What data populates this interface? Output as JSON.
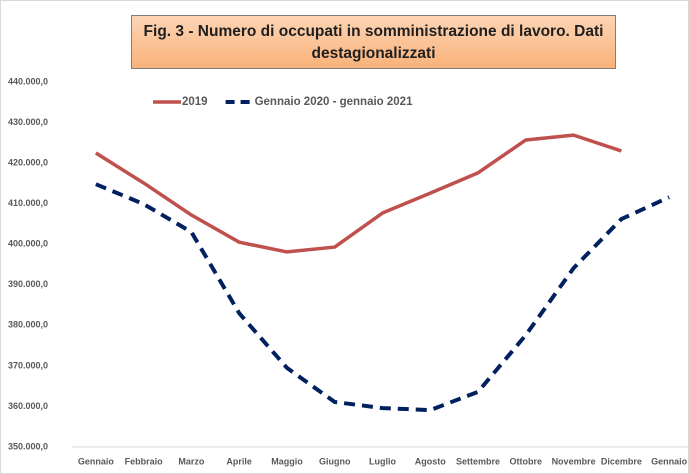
{
  "chart_data": {
    "type": "line",
    "title": "Fig. 3 - Numero di occupati in somministrazione di lavoro. Dati destagionalizzati",
    "categories": [
      "Gennaio",
      "Febbraio",
      "Marzo",
      "Aprile",
      "Maggio",
      "Giugno",
      "Luglio",
      "Agosto",
      "Settembre",
      "Ottobre",
      "Novembre",
      "Dicembre",
      "Gennaio"
    ],
    "series": [
      {
        "name": "2019",
        "color": "#c0504d",
        "dashed": false,
        "values": [
          422500,
          415100,
          407200,
          400500,
          398100,
          399300,
          407700,
          412600,
          417600,
          425700,
          426900,
          423000,
          null
        ]
      },
      {
        "name": "Gennaio 2020 - gennaio 2021",
        "color": "#002060",
        "dashed": true,
        "values": [
          414800,
          409900,
          403000,
          383000,
          369500,
          361100,
          359600,
          359100,
          363600,
          377600,
          394100,
          406200,
          411600
        ]
      }
    ],
    "ylim": [
      350000,
      440000
    ],
    "yticks": [
      {
        "value": 350000,
        "label": "350.000,0"
      },
      {
        "value": 360000,
        "label": "360.000,0"
      },
      {
        "value": 370000,
        "label": "370.000,0"
      },
      {
        "value": 380000,
        "label": "380.000,0"
      },
      {
        "value": 390000,
        "label": "390.000,0"
      },
      {
        "value": 400000,
        "label": "400.000,0"
      },
      {
        "value": 410000,
        "label": "410.000,0"
      },
      {
        "value": 420000,
        "label": "420.000,0"
      },
      {
        "value": 430000,
        "label": "430.000,0"
      },
      {
        "value": 440000,
        "label": "440.000,0"
      }
    ],
    "grid": false,
    "legend": "top"
  }
}
